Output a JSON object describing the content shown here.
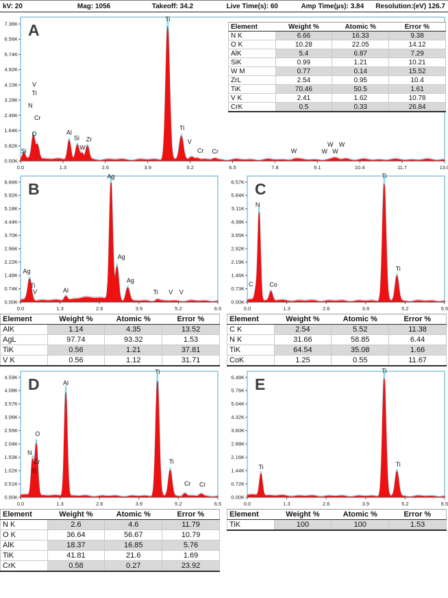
{
  "header": {
    "settings": [
      "kV: 20",
      "Mag: 1056",
      "Takeoff: 34.2",
      "Live Time(s): 60",
      "Amp Time(µs): 3.84",
      "Resolution:(eV) 126.7"
    ]
  },
  "table_headers": [
    "Element",
    "Weight %",
    "Atomic %",
    "Error %"
  ],
  "colors": {
    "spectrum_red": "#ee1111",
    "trace_cyan": "#5fd0e8",
    "frame_blue": "#6fb3d9",
    "row_shade": "#d9d9d9"
  },
  "chart_data": [
    {
      "panel": "A",
      "type": "area",
      "x_axis": {
        "unit": "keV",
        "xlim": [
          0,
          13.0
        ],
        "tick_labels": [
          "0.0",
          "1.3",
          "2.6",
          "3.9",
          "5.2",
          "6.5",
          "7.8",
          "9.1",
          "10.4",
          "11.7",
          "13.0"
        ]
      },
      "y_axis": {
        "unit": "counts",
        "tick_labels": [
          "0.00K",
          "0.82K",
          "1.64K",
          "2.46K",
          "3.28K",
          "4.10K",
          "4.92K",
          "5.74K",
          "6.56K",
          "7.38K"
        ]
      },
      "peaks": [
        {
          "element": "Si L",
          "energy_kev": 0.1,
          "counts_k": 0.32,
          "sigma_kev": 0.035
        },
        {
          "element": "N",
          "energy_kev": 0.39,
          "counts_k": 1.3,
          "sigma_kev": 0.05
        },
        {
          "element": "O",
          "energy_kev": 0.52,
          "counts_k": 0.78,
          "sigma_kev": 0.05
        },
        {
          "element": "Al",
          "energy_kev": 1.49,
          "counts_k": 1.08,
          "sigma_kev": 0.05
        },
        {
          "element": "Si",
          "energy_kev": 1.74,
          "counts_k": 0.78,
          "sigma_kev": 0.05
        },
        {
          "element": "W M",
          "energy_kev": 1.88,
          "counts_k": 0.35,
          "sigma_kev": 0.05
        },
        {
          "element": "Zr L",
          "energy_kev": 2.05,
          "counts_k": 0.72,
          "sigma_kev": 0.05
        },
        {
          "element": "Ti Ka",
          "energy_kev": 4.51,
          "counts_k": 7.22,
          "sigma_kev": 0.06
        },
        {
          "element": "Ti Kb",
          "energy_kev": 4.93,
          "counts_k": 1.28,
          "sigma_kev": 0.06
        },
        {
          "element": "V Kb",
          "energy_kev": 5.25,
          "counts_k": 0.18,
          "sigma_kev": 0.06
        },
        {
          "element": "Cr Ka",
          "energy_kev": 5.41,
          "counts_k": 0.12,
          "sigma_kev": 0.06
        },
        {
          "element": "Cr Kb",
          "energy_kev": 5.95,
          "counts_k": 0.08,
          "sigma_kev": 0.06
        },
        {
          "element": "W La",
          "energy_kev": 8.4,
          "counts_k": 0.06,
          "sigma_kev": 0.09
        },
        {
          "element": "W Lb",
          "energy_kev": 9.67,
          "counts_k": 0.09,
          "sigma_kev": 0.09
        },
        {
          "element": "W Lb2",
          "energy_kev": 9.96,
          "counts_k": 0.06,
          "sigma_kev": 0.09
        }
      ],
      "peak_labels": [
        {
          "text": "V",
          "x_kev": 0.42,
          "y_k": 4.0
        },
        {
          "text": "Ti",
          "x_kev": 0.42,
          "y_k": 3.55
        },
        {
          "text": "N",
          "x_kev": 0.3,
          "y_k": 2.88
        },
        {
          "text": "Cr",
          "x_kev": 0.52,
          "y_k": 2.22
        },
        {
          "text": "O",
          "x_kev": 0.42,
          "y_k": 1.35
        },
        {
          "text": "Si",
          "x_kev": 0.1,
          "y_k": 0.42
        },
        {
          "text": "Al",
          "x_kev": 1.49,
          "y_k": 1.42
        },
        {
          "text": "Si",
          "x_kev": 1.72,
          "y_k": 1.12
        },
        {
          "text": "W",
          "x_kev": 1.9,
          "y_k": 0.6
        },
        {
          "text": "Zr",
          "x_kev": 2.1,
          "y_k": 1.06
        },
        {
          "text": "Ti",
          "x_kev": 4.51,
          "y_k": 7.52
        },
        {
          "text": "Ti",
          "x_kev": 4.95,
          "y_k": 1.66
        },
        {
          "text": "V",
          "x_kev": 5.18,
          "y_k": 0.92
        },
        {
          "text": "Cr",
          "x_kev": 5.52,
          "y_k": 0.44
        },
        {
          "text": "Cr",
          "x_kev": 5.97,
          "y_k": 0.4
        },
        {
          "text": "W",
          "x_kev": 8.38,
          "y_k": 0.42
        },
        {
          "text": "W",
          "x_kev": 9.5,
          "y_k": 0.78
        },
        {
          "text": "W",
          "x_kev": 9.85,
          "y_k": 0.78
        },
        {
          "text": "W",
          "x_kev": 9.32,
          "y_k": 0.4
        },
        {
          "text": "W",
          "x_kev": 9.65,
          "y_k": 0.4
        }
      ],
      "table": {
        "rows": [
          [
            "N K",
            "6.66",
            "16.33",
            "9.38"
          ],
          [
            "O K",
            "10.28",
            "22.05",
            "14.12"
          ],
          [
            "AlK",
            "5.4",
            "6.87",
            "7.29"
          ],
          [
            "SiK",
            "0.99",
            "1.21",
            "10.21"
          ],
          [
            "W M",
            "0.77",
            "0.14",
            "15.52"
          ],
          [
            "ZrL",
            "2.54",
            "0.95",
            "10.4"
          ],
          [
            "TiK",
            "70.46",
            "50.5",
            "1.61"
          ],
          [
            "V K",
            "2.41",
            "1.62",
            "10.78"
          ],
          [
            "CrK",
            "0.5",
            "0.33",
            "26.84"
          ]
        ]
      }
    },
    {
      "panel": "B",
      "type": "area",
      "x_axis": {
        "unit": "keV",
        "xlim": [
          0,
          6.5
        ],
        "tick_labels": [
          "0.0",
          "1.3",
          "2.6",
          "3.9",
          "5.2",
          "6.5"
        ]
      },
      "y_axis": {
        "unit": "counts",
        "tick_labels": [
          "0.00K",
          "0.74K",
          "1.48K",
          "2.22K",
          "2.96K",
          "3.70K",
          "4.44K",
          "5.18K",
          "5.92K",
          "6.66K"
        ]
      },
      "peaks": [
        {
          "element": "Ag M",
          "energy_kev": 0.3,
          "counts_k": 1.18,
          "sigma_kev": 0.06
        },
        {
          "element": "Al",
          "energy_kev": 1.49,
          "counts_k": 0.26,
          "sigma_kev": 0.05
        },
        {
          "element": "background",
          "energy_kev": 2.35,
          "counts_k": 0.2,
          "sigma_kev": 0.45
        },
        {
          "element": "Ag La",
          "energy_kev": 2.98,
          "counts_k": 6.5,
          "sigma_kev": 0.055
        },
        {
          "element": "Ag Lb",
          "energy_kev": 3.18,
          "counts_k": 1.85,
          "sigma_kev": 0.055
        },
        {
          "element": "Ag Lb2",
          "energy_kev": 3.53,
          "counts_k": 0.75,
          "sigma_kev": 0.06
        },
        {
          "element": "Ti",
          "energy_kev": 4.51,
          "counts_k": 0.1,
          "sigma_kev": 0.06
        }
      ],
      "peak_labels": [
        {
          "text": "Ag",
          "x_kev": 0.2,
          "y_k": 1.6
        },
        {
          "text": "Ti",
          "x_kev": 0.4,
          "y_k": 0.8
        },
        {
          "text": "V",
          "x_kev": 0.48,
          "y_k": 0.46
        },
        {
          "text": "Al",
          "x_kev": 1.49,
          "y_k": 0.54
        },
        {
          "text": "Ag",
          "x_kev": 2.98,
          "y_k": 6.86
        },
        {
          "text": "Ag",
          "x_kev": 3.32,
          "y_k": 2.4
        },
        {
          "text": "Ag",
          "x_kev": 3.62,
          "y_k": 1.08
        },
        {
          "text": "Ti",
          "x_kev": 4.45,
          "y_k": 0.44
        },
        {
          "text": "V",
          "x_kev": 4.95,
          "y_k": 0.44
        },
        {
          "text": "V",
          "x_kev": 5.3,
          "y_k": 0.44
        }
      ],
      "table": {
        "rows": [
          [
            "AlK",
            "1.14",
            "4.35",
            "13.52"
          ],
          [
            "AgL",
            "97.74",
            "93.32",
            "1.53"
          ],
          [
            "TiK",
            "0.56",
            "1.21",
            "37.81"
          ],
          [
            "V K",
            "0.56",
            "1.12",
            "31.71"
          ]
        ]
      }
    },
    {
      "panel": "C",
      "type": "area",
      "x_axis": {
        "unit": "keV",
        "xlim": [
          0,
          6.5
        ],
        "tick_labels": [
          "0.0",
          "1.3",
          "2.6",
          "3.9",
          "5.2",
          "6.5"
        ]
      },
      "y_axis": {
        "unit": "counts",
        "tick_labels": [
          "0.00K",
          "0.73K",
          "1.46K",
          "2.19K",
          "2.92K",
          "3.65K",
          "4.38K",
          "5.11K",
          "5.84K",
          "6.57K"
        ]
      },
      "peaks": [
        {
          "element": "C",
          "energy_kev": 0.28,
          "counts_k": 0.5,
          "sigma_kev": 0.04
        },
        {
          "element": "N",
          "energy_kev": 0.39,
          "counts_k": 4.85,
          "sigma_kev": 0.045
        },
        {
          "element": "Co L",
          "energy_kev": 0.78,
          "counts_k": 0.5,
          "sigma_kev": 0.05
        },
        {
          "element": "Ti Ka",
          "energy_kev": 4.51,
          "counts_k": 6.42,
          "sigma_kev": 0.06
        },
        {
          "element": "Ti Kb",
          "energy_kev": 4.93,
          "counts_k": 1.38,
          "sigma_kev": 0.06
        }
      ],
      "peak_labels": [
        {
          "text": "N",
          "x_kev": 0.34,
          "y_k": 5.22
        },
        {
          "text": "C",
          "x_kev": 0.12,
          "y_k": 0.86
        },
        {
          "text": "Co",
          "x_kev": 0.86,
          "y_k": 0.84
        },
        {
          "text": "Ti",
          "x_kev": 4.51,
          "y_k": 6.78
        },
        {
          "text": "Ti",
          "x_kev": 4.97,
          "y_k": 1.7
        }
      ],
      "table": {
        "rows": [
          [
            "C K",
            "2.54",
            "5.52",
            "11.38"
          ],
          [
            "N K",
            "31.66",
            "58.85",
            "6.44"
          ],
          [
            "TiK",
            "64.54",
            "35.08",
            "1.66"
          ],
          [
            "CoK",
            "1.25",
            "0.55",
            "11.67"
          ]
        ]
      }
    },
    {
      "panel": "D",
      "type": "area",
      "x_axis": {
        "unit": "keV",
        "xlim": [
          0,
          6.5
        ],
        "tick_labels": [
          "0.0",
          "1.3",
          "2.6",
          "3.9",
          "5.2",
          "6.5"
        ]
      },
      "y_axis": {
        "unit": "counts",
        "tick_labels": [
          "0.00K",
          "0.51K",
          "1.02K",
          "1.53K",
          "2.04K",
          "2.55K",
          "3.06K",
          "3.57K",
          "4.08K",
          "4.59K"
        ]
      },
      "peaks": [
        {
          "element": "N",
          "energy_kev": 0.39,
          "counts_k": 1.35,
          "sigma_kev": 0.045
        },
        {
          "element": "O",
          "energy_kev": 0.52,
          "counts_k": 2.0,
          "sigma_kev": 0.05
        },
        {
          "element": "Al",
          "energy_kev": 1.49,
          "counts_k": 4.0,
          "sigma_kev": 0.05
        },
        {
          "element": "Ti Ka",
          "energy_kev": 4.51,
          "counts_k": 4.42,
          "sigma_kev": 0.06
        },
        {
          "element": "Ti Kb",
          "energy_kev": 4.93,
          "counts_k": 1.0,
          "sigma_kev": 0.06
        },
        {
          "element": "Cr Ka",
          "energy_kev": 5.41,
          "counts_k": 0.13,
          "sigma_kev": 0.06
        },
        {
          "element": "Cr Kb",
          "energy_kev": 5.95,
          "counts_k": 0.09,
          "sigma_kev": 0.06
        }
      ],
      "peak_labels": [
        {
          "text": "O",
          "x_kev": 0.56,
          "y_k": 2.34
        },
        {
          "text": "N",
          "x_kev": 0.3,
          "y_k": 1.62
        },
        {
          "text": "Cr",
          "x_kev": 0.54,
          "y_k": 1.28
        },
        {
          "text": "Ti",
          "x_kev": 0.44,
          "y_k": 0.92
        },
        {
          "text": "Al",
          "x_kev": 1.49,
          "y_k": 4.3
        },
        {
          "text": "Ti",
          "x_kev": 4.51,
          "y_k": 4.72
        },
        {
          "text": "Ti",
          "x_kev": 4.97,
          "y_k": 1.28
        },
        {
          "text": "Cr",
          "x_kev": 5.5,
          "y_k": 0.44
        },
        {
          "text": "Cr",
          "x_kev": 6.0,
          "y_k": 0.4
        }
      ],
      "table": {
        "rows": [
          [
            "N K",
            "2.6",
            "4.6",
            "11.79"
          ],
          [
            "O K",
            "36.64",
            "56.67",
            "10.79"
          ],
          [
            "AlK",
            "18.37",
            "16.85",
            "5.76"
          ],
          [
            "TiK",
            "41.81",
            "21.6",
            "1.69"
          ],
          [
            "CrK",
            "0.58",
            "0.27",
            "23.92"
          ]
        ]
      }
    },
    {
      "panel": "E",
      "type": "area",
      "x_axis": {
        "unit": "keV",
        "xlim": [
          0,
          6.5
        ],
        "tick_labels": [
          "0.0",
          "1.3",
          "2.6",
          "3.9",
          "5.2",
          "6.5"
        ]
      },
      "y_axis": {
        "unit": "counts",
        "tick_labels": [
          "0.00K",
          "0.72K",
          "1.44K",
          "2.16K",
          "2.88K",
          "3.60K",
          "4.32K",
          "5.04K",
          "5.76K",
          "6.48K"
        ]
      },
      "peaks": [
        {
          "element": "Ti L",
          "energy_kev": 0.45,
          "counts_k": 1.22,
          "sigma_kev": 0.05
        },
        {
          "element": "Ti Ka",
          "energy_kev": 4.51,
          "counts_k": 6.38,
          "sigma_kev": 0.06
        },
        {
          "element": "Ti Kb",
          "energy_kev": 4.93,
          "counts_k": 1.35,
          "sigma_kev": 0.06
        }
      ],
      "peak_labels": [
        {
          "text": "Ti",
          "x_kev": 0.45,
          "y_k": 1.52
        },
        {
          "text": "Ti",
          "x_kev": 4.51,
          "y_k": 6.72
        },
        {
          "text": "Ti",
          "x_kev": 4.97,
          "y_k": 1.66
        }
      ],
      "table": {
        "rows": [
          [
            "TiK",
            "100",
            "100",
            "1.53"
          ]
        ]
      }
    }
  ]
}
